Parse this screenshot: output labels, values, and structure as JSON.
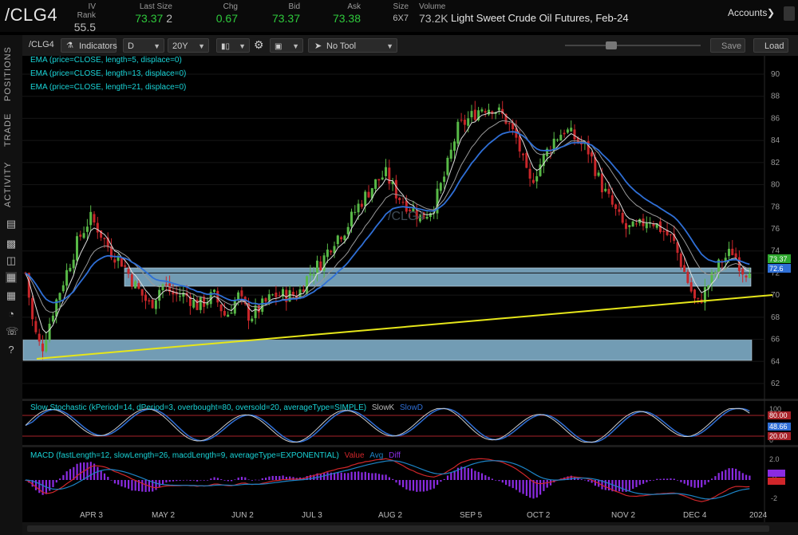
{
  "quote": {
    "symbol": "/CLG4",
    "iv_rank_label": "IV Rank",
    "iv_rank": "55.5",
    "last_size_label": "Last Size",
    "last": "73.37",
    "last_size": "2",
    "chg_label": "Chg",
    "chg": "0.67",
    "bid_label": "Bid",
    "bid": "73.37",
    "ask_label": "Ask",
    "ask": "73.38",
    "size_label": "Size",
    "size": "6X7",
    "volume_label": "Volume",
    "volume": "73.2K",
    "description": "Light Sweet Crude Oil Futures, Feb-24",
    "accounts": "Accounts"
  },
  "sidebar": {
    "tabs": [
      "POSITIONS",
      "TRADE",
      "ACTIVITY"
    ]
  },
  "toolbar": {
    "symbol": "/CLG4",
    "indicators": "Indicators",
    "period": "D",
    "range": "20Y",
    "tool": "No Tool",
    "save": "Save",
    "load": "Load"
  },
  "chart": {
    "watermark": "/CLG4",
    "ema_legends": [
      "EMA (price=CLOSE, length=5, displace=0)",
      "EMA (price=CLOSE, length=13, displace=0)",
      "EMA (price=CLOSE, length=21, displace=0)"
    ],
    "price_ticks": [
      "90",
      "88",
      "86",
      "84",
      "82",
      "80",
      "78",
      "76",
      "74",
      "72",
      "70",
      "68",
      "66",
      "64",
      "62"
    ],
    "price_badges": [
      "73.37",
      "72.6"
    ],
    "x_labels": [
      "APR 3",
      "MAY 2",
      "JUN 2",
      "JUL 3",
      "AUG 2",
      "SEP 5",
      "OCT 2",
      "NOV 2",
      "DEC 4",
      "2024"
    ],
    "stoch_legend": "Slow Stochastic (kPeriod=14, dPeriod=3, overbought=80, oversold=20, averageType=SIMPLE)",
    "stoch_k": "SlowK",
    "stoch_d": "SlowD",
    "stoch_ticks": [
      "100",
      "50",
      "0"
    ],
    "stoch_badges": [
      "80.00",
      "48.66",
      "20.00"
    ],
    "macd_legend": "MACD (fastLength=12, slowLength=26, macdLength=9, averageType=EXPONENTIAL)",
    "macd_value": "Value",
    "macd_avg": "Avg",
    "macd_diff": "Diff",
    "macd_ticks": [
      "2.0",
      "0",
      "-2"
    ],
    "colors": {
      "ema5": "#dddddd",
      "ema13": "#9a9a9a",
      "ema21": "#2f6fd6",
      "trend": "#e6e61a",
      "zone": "#86b7d3",
      "up": "#58b947",
      "down": "#c8262a"
    }
  }
}
